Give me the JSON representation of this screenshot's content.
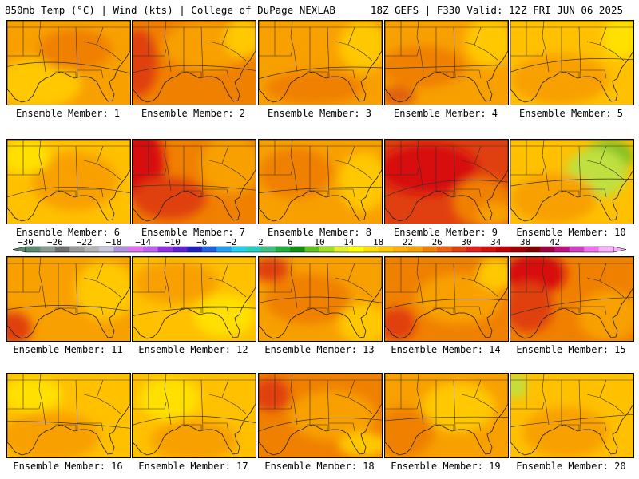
{
  "header": {
    "left": "850mb Temp (°C) | Wind (kts) | College of DuPage NEXLAB",
    "right": "18Z GEFS | F330 Valid: 12Z FRI JUN 06 2025"
  },
  "label_prefix": "Ensemble Member: ",
  "members": [
    {
      "num": "1",
      "base": "#f8a000",
      "blobs": [
        [
          "#ffc800",
          0.25,
          0.75,
          0.35,
          0.3
        ],
        [
          "#f08000",
          0.55,
          0.35,
          0.3,
          0.25
        ]
      ]
    },
    {
      "num": "2",
      "base": "#f08000",
      "blobs": [
        [
          "#e04010",
          0.05,
          0.5,
          0.15,
          0.4
        ],
        [
          "#f8a000",
          0.6,
          0.3,
          0.35,
          0.3
        ],
        [
          "#ffc800",
          0.9,
          0.2,
          0.15,
          0.25
        ]
      ]
    },
    {
      "num": "3",
      "base": "#f8a000",
      "blobs": [
        [
          "#f08000",
          0.45,
          0.8,
          0.4,
          0.2
        ],
        [
          "#ffc800",
          0.85,
          0.3,
          0.2,
          0.3
        ]
      ]
    },
    {
      "num": "4",
      "base": "#f8a000",
      "blobs": [
        [
          "#f08000",
          0.3,
          0.55,
          0.35,
          0.25
        ],
        [
          "#ffc800",
          0.85,
          0.25,
          0.2,
          0.3
        ],
        [
          "#e06010",
          0.1,
          0.9,
          0.15,
          0.12
        ]
      ]
    },
    {
      "num": "5",
      "base": "#ffc000",
      "blobs": [
        [
          "#f8a000",
          0.4,
          0.7,
          0.4,
          0.3
        ],
        [
          "#ffe000",
          0.9,
          0.2,
          0.15,
          0.25
        ]
      ]
    },
    {
      "num": "6",
      "base": "#ffc000",
      "blobs": [
        [
          "#f8a000",
          0.55,
          0.5,
          0.35,
          0.35
        ],
        [
          "#ffe000",
          0.15,
          0.2,
          0.2,
          0.2
        ]
      ]
    },
    {
      "num": "7",
      "base": "#f08000",
      "blobs": [
        [
          "#d81010",
          0.08,
          0.3,
          0.18,
          0.45
        ],
        [
          "#e04010",
          0.3,
          0.7,
          0.3,
          0.25
        ],
        [
          "#f8a000",
          0.8,
          0.3,
          0.25,
          0.35
        ]
      ]
    },
    {
      "num": "8",
      "base": "#f8a000",
      "blobs": [
        [
          "#f08000",
          0.3,
          0.4,
          0.3,
          0.3
        ],
        [
          "#ffc800",
          0.85,
          0.5,
          0.2,
          0.35
        ]
      ]
    },
    {
      "num": "9",
      "base": "#e04010",
      "blobs": [
        [
          "#d81010",
          0.35,
          0.35,
          0.4,
          0.3
        ],
        [
          "#f08000",
          0.8,
          0.75,
          0.25,
          0.3
        ],
        [
          "#f8a000",
          0.9,
          0.9,
          0.15,
          0.15
        ]
      ]
    },
    {
      "num": "10",
      "base": "#ffc000",
      "blobs": [
        [
          "#80c020",
          0.8,
          0.2,
          0.2,
          0.2
        ],
        [
          "#c0e040",
          0.7,
          0.4,
          0.25,
          0.3
        ],
        [
          "#f8a000",
          0.35,
          0.7,
          0.35,
          0.3
        ]
      ]
    },
    {
      "num": "11",
      "base": "#f8a000",
      "blobs": [
        [
          "#e04010",
          0.05,
          0.85,
          0.15,
          0.2
        ],
        [
          "#ffc800",
          0.8,
          0.4,
          0.25,
          0.35
        ]
      ]
    },
    {
      "num": "12",
      "base": "#ffc000",
      "blobs": [
        [
          "#f8a000",
          0.35,
          0.3,
          0.35,
          0.25
        ],
        [
          "#ffe000",
          0.75,
          0.7,
          0.25,
          0.25
        ]
      ]
    },
    {
      "num": "13",
      "base": "#f8a000",
      "blobs": [
        [
          "#e04010",
          0.1,
          0.15,
          0.15,
          0.15
        ],
        [
          "#f08000",
          0.4,
          0.5,
          0.35,
          0.3
        ],
        [
          "#ffc800",
          0.85,
          0.8,
          0.2,
          0.25
        ]
      ]
    },
    {
      "num": "14",
      "base": "#f08000",
      "blobs": [
        [
          "#e04010",
          0.1,
          0.8,
          0.15,
          0.2
        ],
        [
          "#f8a000",
          0.6,
          0.5,
          0.35,
          0.3
        ],
        [
          "#ffc800",
          0.9,
          0.2,
          0.15,
          0.2
        ]
      ]
    },
    {
      "num": "15",
      "base": "#f08000",
      "blobs": [
        [
          "#d81010",
          0.2,
          0.2,
          0.25,
          0.25
        ],
        [
          "#e04010",
          0.15,
          0.6,
          0.2,
          0.3
        ],
        [
          "#f8a000",
          0.8,
          0.7,
          0.25,
          0.3
        ]
      ]
    },
    {
      "num": "16",
      "base": "#ffc000",
      "blobs": [
        [
          "#f8a000",
          0.35,
          0.75,
          0.4,
          0.3
        ],
        [
          "#ffe000",
          0.2,
          0.25,
          0.25,
          0.2
        ]
      ]
    },
    {
      "num": "17",
      "base": "#ffc000",
      "blobs": [
        [
          "#f8a000",
          0.5,
          0.8,
          0.35,
          0.25
        ],
        [
          "#ffe000",
          0.3,
          0.3,
          0.25,
          0.25
        ]
      ]
    },
    {
      "num": "18",
      "base": "#f08000",
      "blobs": [
        [
          "#e04010",
          0.1,
          0.25,
          0.15,
          0.2
        ],
        [
          "#f8a000",
          0.6,
          0.5,
          0.35,
          0.3
        ],
        [
          "#ffc800",
          0.85,
          0.85,
          0.2,
          0.15
        ]
      ]
    },
    {
      "num": "19",
      "base": "#f8a000",
      "blobs": [
        [
          "#ffc800",
          0.6,
          0.4,
          0.3,
          0.3
        ],
        [
          "#f08000",
          0.15,
          0.7,
          0.25,
          0.3
        ]
      ]
    },
    {
      "num": "20",
      "base": "#ffc000",
      "blobs": [
        [
          "#f8a000",
          0.45,
          0.7,
          0.35,
          0.3
        ],
        [
          "#c0e040",
          0.05,
          0.15,
          0.08,
          0.15
        ]
      ]
    }
  ],
  "colorbar": {
    "ticks": [
      "-30",
      "-26",
      "-22",
      "-18",
      "-14",
      "-10",
      "-6",
      "-2",
      "2",
      "6",
      "10",
      "14",
      "18",
      "22",
      "26",
      "30",
      "34",
      "38",
      "42"
    ],
    "colors": [
      "#5a8a70",
      "#8a9a92",
      "#6e6e6e",
      "#9a9a9a",
      "#b4b4b4",
      "#c8c8dc",
      "#b090d8",
      "#e070f0",
      "#c060f0",
      "#9030e0",
      "#6020d0",
      "#2020c0",
      "#2060e0",
      "#20a0f0",
      "#20d0f0",
      "#20d0c0",
      "#40c080",
      "#20b040",
      "#109010",
      "#60c020",
      "#a0e020",
      "#e0f020",
      "#ffff00",
      "#ffe000",
      "#ffc800",
      "#ffb000",
      "#f8a000",
      "#f08000",
      "#f06010",
      "#e04010",
      "#e02020",
      "#d01010",
      "#c00000",
      "#a00000",
      "#800000",
      "#a00040",
      "#c01080",
      "#d040c0",
      "#f070f0",
      "#f8b0f8"
    ]
  }
}
